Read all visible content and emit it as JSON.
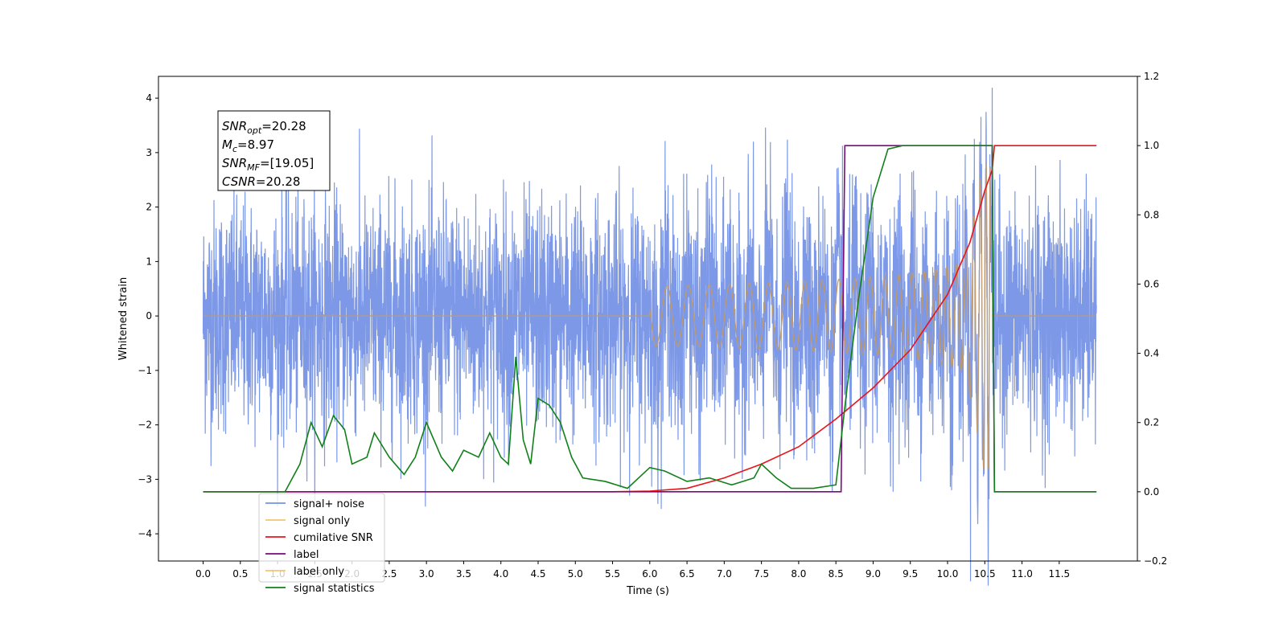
{
  "chart_data": {
    "type": "line",
    "xlabel": "Time (s)",
    "ylabel_left": "Whitened strain",
    "ylim_left": [
      -4.5,
      4.4
    ],
    "ylim_right": [
      -0.2,
      1.2
    ],
    "xlim": [
      -0.6,
      12.55
    ],
    "x_ticks": [
      "0.0",
      "0.5",
      "1.0",
      "1.5",
      "2.0",
      "2.5",
      "3.0",
      "3.5",
      "4.0",
      "4.5",
      "5.0",
      "5.5",
      "6.0",
      "6.5",
      "7.0",
      "7.5",
      "8.0",
      "8.5",
      "9.0",
      "9.5",
      "10.0",
      "10.5",
      "11.0",
      "11.5"
    ],
    "y_ticks_left": [
      "4",
      "3",
      "2",
      "1",
      "0",
      "−1",
      "−2",
      "−3",
      "−4"
    ],
    "y_ticks_right": [
      "1.2",
      "1.0",
      "0.8",
      "0.6",
      "0.4",
      "0.2",
      "0.0",
      "−0.2"
    ],
    "annotation": {
      "lines": [
        {
          "sym": "SNR",
          "sub": "opt",
          "val": "=20.28"
        },
        {
          "sym": "M",
          "sub": "c",
          "val": "=8.97"
        },
        {
          "sym": "SNR",
          "sub": "MF",
          "val": "=[19.05]"
        },
        {
          "sym": "CSNR",
          "sub": "",
          "val": "=20.28"
        }
      ]
    },
    "legend_position": "lower-left",
    "series": [
      {
        "name": "signal+ noise",
        "color": "#7592e6",
        "axis": "left",
        "description_values": {
          "x_start": 0.0,
          "x_end": 12.0,
          "noise_std": 1.0,
          "peak": 4.0
        }
      },
      {
        "name": "signal only",
        "color": "#f5c276",
        "axis": "left",
        "description_values": {
          "chirp_start": 6.0,
          "chirp_end": 10.6,
          "max_amp": 2.8
        }
      },
      {
        "name": "cumilative SNR",
        "color": "#e8141b",
        "axis": "right",
        "points": [
          [
            0,
            0
          ],
          [
            5.5,
            0
          ],
          [
            6.0,
            0.002
          ],
          [
            6.5,
            0.01
          ],
          [
            7.0,
            0.04
          ],
          [
            7.5,
            0.08
          ],
          [
            8.0,
            0.13
          ],
          [
            8.5,
            0.21
          ],
          [
            9.0,
            0.3
          ],
          [
            9.5,
            0.41
          ],
          [
            10.0,
            0.57
          ],
          [
            10.3,
            0.72
          ],
          [
            10.5,
            0.87
          ],
          [
            10.6,
            0.93
          ],
          [
            10.63,
            1.0
          ],
          [
            12.0,
            1.0
          ]
        ]
      },
      {
        "name": "label",
        "color": "#7a0a7e",
        "axis": "right",
        "points": [
          [
            0,
            0
          ],
          [
            8.57,
            0
          ],
          [
            8.62,
            1.0
          ],
          [
            10.6,
            1.0
          ],
          [
            10.63,
            0
          ],
          [
            12.0,
            0
          ]
        ]
      },
      {
        "name": "label only",
        "color": "#f5c276",
        "axis": "right",
        "points": []
      },
      {
        "name": "signal statistics",
        "color": "#12801a",
        "axis": "right",
        "points": [
          [
            0,
            0
          ],
          [
            1.1,
            0
          ],
          [
            1.3,
            0.08
          ],
          [
            1.45,
            0.2
          ],
          [
            1.6,
            0.13
          ],
          [
            1.75,
            0.22
          ],
          [
            1.9,
            0.18
          ],
          [
            2.0,
            0.08
          ],
          [
            2.2,
            0.1
          ],
          [
            2.3,
            0.17
          ],
          [
            2.5,
            0.1
          ],
          [
            2.7,
            0.05
          ],
          [
            2.85,
            0.1
          ],
          [
            3.0,
            0.2
          ],
          [
            3.2,
            0.1
          ],
          [
            3.35,
            0.06
          ],
          [
            3.5,
            0.12
          ],
          [
            3.7,
            0.1
          ],
          [
            3.85,
            0.17
          ],
          [
            4.0,
            0.1
          ],
          [
            4.1,
            0.08
          ],
          [
            4.2,
            0.39
          ],
          [
            4.3,
            0.15
          ],
          [
            4.4,
            0.08
          ],
          [
            4.5,
            0.27
          ],
          [
            4.65,
            0.25
          ],
          [
            4.8,
            0.2
          ],
          [
            4.95,
            0.1
          ],
          [
            5.1,
            0.04
          ],
          [
            5.4,
            0.03
          ],
          [
            5.7,
            0.01
          ],
          [
            6.0,
            0.07
          ],
          [
            6.2,
            0.06
          ],
          [
            6.5,
            0.03
          ],
          [
            6.8,
            0.04
          ],
          [
            7.1,
            0.02
          ],
          [
            7.4,
            0.04
          ],
          [
            7.5,
            0.08
          ],
          [
            7.7,
            0.04
          ],
          [
            7.9,
            0.01
          ],
          [
            8.2,
            0.01
          ],
          [
            8.5,
            0.02
          ],
          [
            8.65,
            0.3
          ],
          [
            8.8,
            0.55
          ],
          [
            9.0,
            0.85
          ],
          [
            9.2,
            0.99
          ],
          [
            9.4,
            1.0
          ],
          [
            10.6,
            1.0
          ],
          [
            10.63,
            0.0
          ],
          [
            12.0,
            0.0
          ]
        ]
      }
    ]
  }
}
